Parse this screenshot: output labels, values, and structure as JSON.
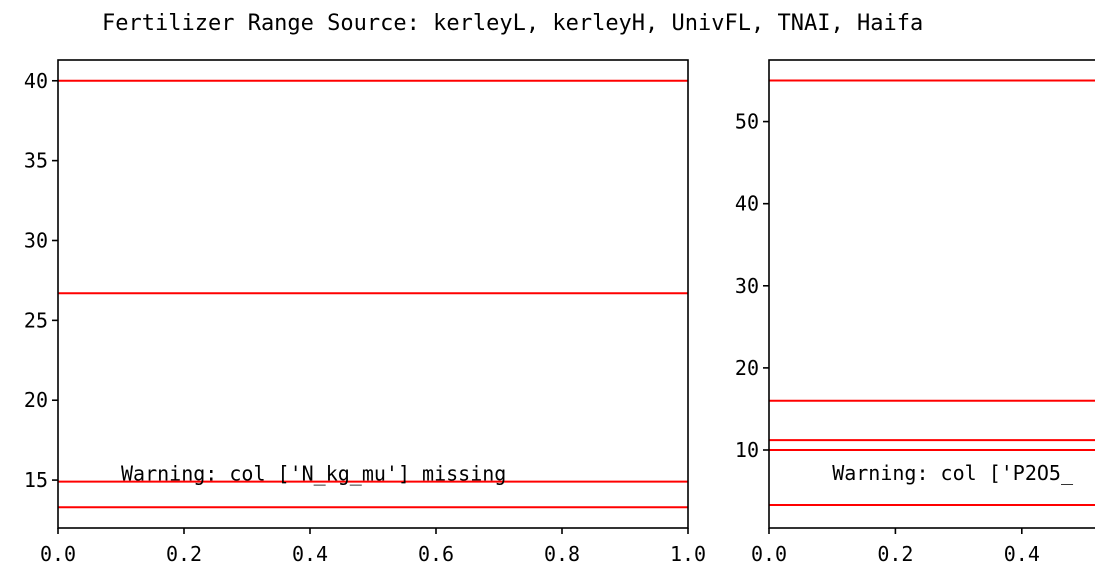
{
  "title": "Fertilizer Range Source: kerleyL, kerleyH, UnivFL, TNAI, Haifa",
  "colors": {
    "line": "#ff0000",
    "axes": "#000000",
    "background": "#ffffff"
  },
  "chart_data": [
    {
      "type": "line",
      "description_kind": "horizontal reference lines",
      "warning": "Warning: col ['N_kg_mu'] missing",
      "xlim": [
        0.0,
        1.0
      ],
      "ylim": [
        12.0,
        41.3
      ],
      "xticks": [
        0.0,
        0.2,
        0.4,
        0.6,
        0.8,
        1.0
      ],
      "xtick_labels": [
        "0.0",
        "0.2",
        "0.4",
        "0.6",
        "0.8",
        "1.0"
      ],
      "yticks": [
        15,
        20,
        25,
        30,
        35,
        40
      ],
      "ytick_labels": [
        "15",
        "20",
        "25",
        "30",
        "35",
        "40"
      ],
      "hlines": [
        40.0,
        26.7,
        14.9,
        13.3
      ],
      "grid": false
    },
    {
      "type": "line",
      "description_kind": "horizontal reference lines",
      "warning": "Warning: col ['P2O5_",
      "xlim": [
        0.0,
        1.0
      ],
      "ylim": [
        0.5,
        57.5
      ],
      "xticks": [
        0.0,
        0.2,
        0.4
      ],
      "xtick_labels": [
        "0.0",
        "0.2",
        "0.4"
      ],
      "yticks": [
        10,
        20,
        30,
        40,
        50
      ],
      "ytick_labels": [
        "10",
        "20",
        "30",
        "40",
        "50"
      ],
      "hlines": [
        55.0,
        16.0,
        11.2,
        10.0,
        3.3
      ],
      "grid": false
    }
  ]
}
